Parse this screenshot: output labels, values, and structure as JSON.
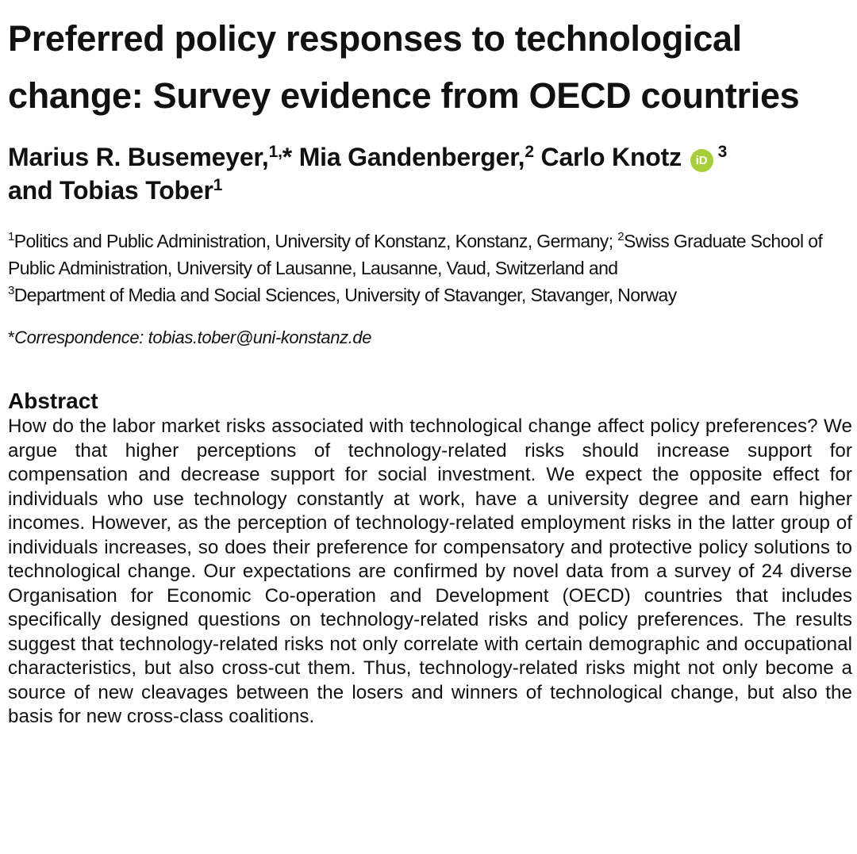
{
  "title": "Preferred policy responses to technological change: Survey evidence from OECD countries",
  "authors": {
    "a1_name": "Marius R. Busemeyer,",
    "a1_sup": "1,",
    "a1_star": "*",
    "a2_name": " Mia Gandenberger,",
    "a2_sup": "2",
    "a3_name": " Carlo Knotz ",
    "orcid_label": "iD",
    "a3_sup": "3",
    "a4_name": " and Tobias Tober",
    "a4_sup": "1"
  },
  "affiliations": {
    "s1": "1",
    "t1": "Politics and Public Administration, University of Konstanz, Konstanz, Germany; ",
    "s2": "2",
    "t2": "Swiss Graduate School of Public Administration, University of Lausanne, Lausanne, Vaud, Switzerland and ",
    "s3": "3",
    "t3": "Department of Media and Social Sciences, University of Stavanger, Stavanger, Norway"
  },
  "correspondence": {
    "star": "*",
    "label": "Correspondence: ",
    "email": "tobias.tober@uni-konstanz.de"
  },
  "abstract": {
    "heading": "Abstract",
    "text": "How do the labor market risks associated with technological change affect policy preferences? We argue that higher perceptions of technology-related risks should increase support for compensation and decrease support for social investment. We expect the opposite effect for individuals who use technology constantly at work, have a university degree and earn higher incomes. However, as the perception of technology-related employment risks in the latter group of individuals increases, so does their preference for compensatory and protective policy solutions to techno­logical change. Our expectations are confirmed by novel data from a survey of 24 di­verse Organisation for Economic Co-operation and Development (OECD) countries that includes specifically designed questions on technology-related risks and policy preferences. The results suggest that technology-related risks not only correlate with certain demographic and occupational characteristics, but also cross-cut them. Thus, technology-related risks might not only become a source of new cleavages be­tween the losers and winners of technological change, but also the basis for new cross-class coalitions."
  }
}
